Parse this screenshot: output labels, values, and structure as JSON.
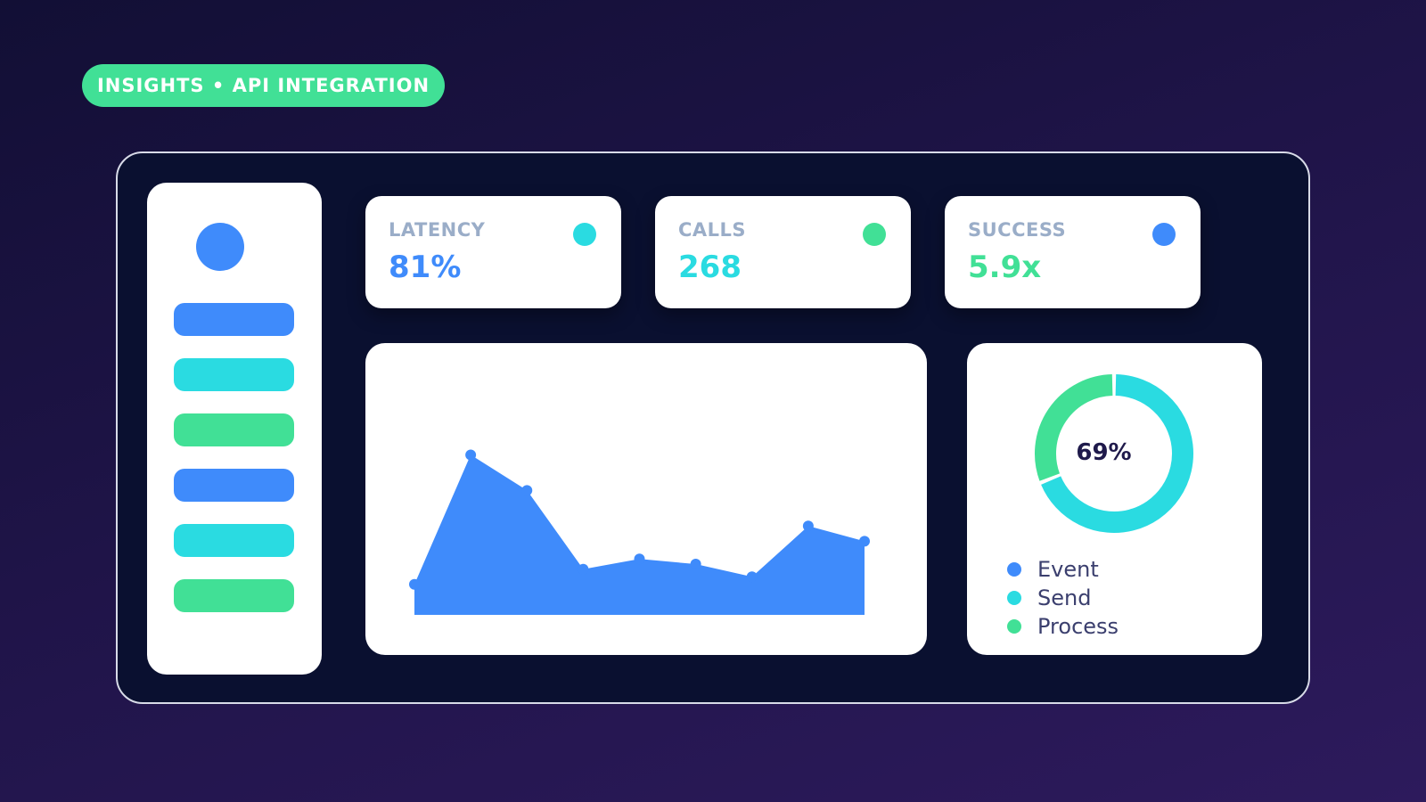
{
  "header": {
    "tag_label": "INSIGHTS • API INTEGRATION"
  },
  "colors": {
    "blue": "#3f8bfb",
    "cyan": "#2adbe1",
    "green": "#41e096",
    "bg_dark": "#0a1030"
  },
  "sidebar": {
    "avatar_icon": "avatar-circle",
    "items": [
      {
        "color": "#3f8bfb"
      },
      {
        "color": "#2adbe1"
      },
      {
        "color": "#41e096"
      },
      {
        "color": "#3f8bfb"
      },
      {
        "color": "#2adbe1"
      },
      {
        "color": "#41e096"
      }
    ]
  },
  "kpis": [
    {
      "label": "LATENCY",
      "value": "81%",
      "value_color": "#3f8bfb",
      "dot_color": "#2adbe1"
    },
    {
      "label": "CALLS",
      "value": "268",
      "value_color": "#2adbe1",
      "dot_color": "#41e096"
    },
    {
      "label": "SUCCESS",
      "value": "5.9x",
      "value_color": "#41e096",
      "dot_color": "#3f8bfb"
    }
  ],
  "chart_data": [
    {
      "type": "area",
      "x": [
        1,
        2,
        3,
        4,
        5,
        6,
        7,
        8,
        9
      ],
      "series": [
        {
          "values": [
            12,
            63,
            49,
            18,
            22,
            20,
            15,
            35,
            29
          ],
          "color": "#3f8bfb"
        }
      ],
      "ylim": [
        0,
        100
      ],
      "grid": false
    },
    {
      "type": "pie",
      "style": "donut",
      "center_label": "69%",
      "slices": [
        {
          "label": "Send",
          "value": 69,
          "color": "#2adbe1"
        },
        {
          "label": "Process",
          "value": 31,
          "color": "#41e096"
        }
      ],
      "legend": [
        "Event",
        "Send",
        "Process"
      ],
      "legend_colors": [
        "#3f8bfb",
        "#2adbe1",
        "#41e096"
      ]
    }
  ]
}
